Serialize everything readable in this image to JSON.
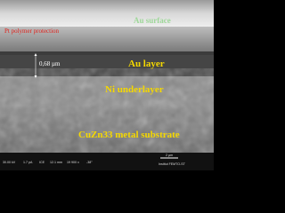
{
  "labels": {
    "top_surface": "Au surface",
    "protection": "Pt polymer protection",
    "thickness": "0,68 µm",
    "au_layer": "Au layer",
    "ni_layer": "Ni underlayer",
    "substrate": "CuZn33 metal substrate"
  },
  "info_bar": [
    "30.00 kV",
    "1.7 pA",
    "ICE",
    "12.1 mm",
    "19 900 x",
    "-38°"
  ],
  "scale_bar": "2 µm",
  "institution": "Institut FEMTO-ST"
}
